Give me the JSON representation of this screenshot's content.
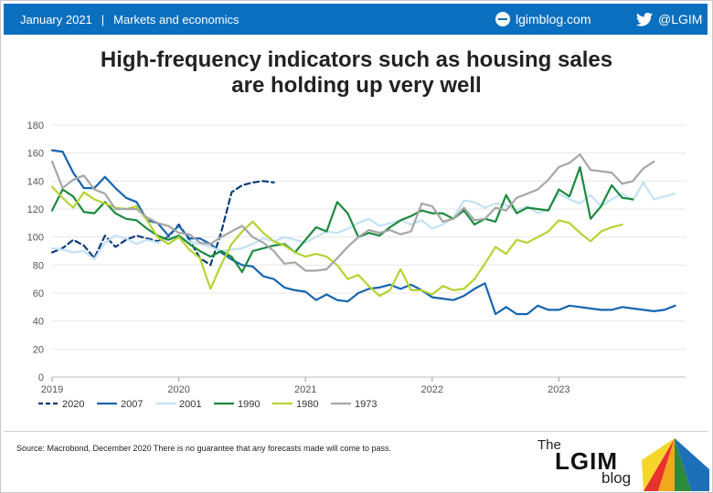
{
  "header": {
    "date": "January 2021",
    "separator": "|",
    "category": "Markets and economics",
    "site": "lgimblog.com",
    "twitter": "@LGIM"
  },
  "title_line1": "High-frequency indicators such as housing sales",
  "title_line2": "are holding up very well",
  "footer": {
    "source": "Source: Macrobond, December 2020 There is no guarantee that any forecasts made will come to pass.",
    "logo_the": "The",
    "logo_lgim": "LGIM",
    "logo_blog": "blog"
  },
  "chart_data": {
    "type": "line",
    "title": "High-frequency indicators such as housing sales are holding up very well",
    "xlabel": "",
    "ylabel": "",
    "ylim": [
      0,
      180
    ],
    "yticks": [
      0,
      20,
      40,
      60,
      80,
      100,
      120,
      140,
      160,
      180
    ],
    "xticks": [
      {
        "label": "2019",
        "x": 0
      },
      {
        "label": "2020",
        "x": 12
      },
      {
        "label": "2021",
        "x": 24
      },
      {
        "label": "2022",
        "x": 36
      },
      {
        "label": "2023",
        "x": 48
      }
    ],
    "x_unit": "months from January of year 1 of each cycle",
    "grid": "horizontal",
    "legend_position": "bottom-left",
    "series": [
      {
        "name": "2020",
        "color": "#0b3d7a",
        "dashed": true,
        "values": [
          89,
          92,
          98,
          94,
          85,
          101,
          93,
          98,
          101,
          99,
          97,
          100,
          109,
          98,
          85,
          80,
          103,
          132,
          137,
          139,
          140,
          139
        ]
      },
      {
        "name": "2007",
        "color": "#1565b0",
        "dashed": false,
        "values": [
          162,
          161,
          146,
          135,
          135,
          143,
          135,
          128,
          125,
          112,
          110,
          101,
          108,
          99,
          99,
          95,
          89,
          84,
          80,
          79,
          72,
          70,
          64,
          62,
          61,
          55,
          59,
          55,
          54,
          60,
          63,
          64,
          66,
          63,
          66,
          62,
          57,
          56,
          55,
          58,
          63,
          67,
          45,
          50,
          45,
          45,
          51,
          48,
          48,
          51,
          50,
          49,
          48,
          48,
          50,
          49,
          48,
          47,
          48,
          51
        ]
      },
      {
        "name": "2001",
        "color": "#c4e2f5",
        "dashed": false,
        "values": [
          92,
          91,
          89,
          90,
          84,
          96,
          101,
          99,
          95,
          98,
          96,
          99,
          101,
          97,
          95,
          93,
          90,
          91,
          92,
          95,
          99,
          97,
          100,
          98,
          96,
          100,
          104,
          103,
          106,
          110,
          113,
          108,
          110,
          112,
          109,
          112,
          106,
          109,
          114,
          126,
          125,
          121,
          124,
          123,
          119,
          122,
          117,
          120,
          131,
          127,
          124,
          130,
          122,
          127,
          131,
          126,
          139,
          127,
          129,
          131
        ]
      },
      {
        "name": "1990",
        "color": "#1c8a3e",
        "dashed": false,
        "values": [
          119,
          134,
          129,
          118,
          117,
          125,
          117,
          113,
          112,
          106,
          101,
          98,
          101,
          95,
          90,
          86,
          90,
          86,
          75,
          90,
          92,
          94,
          95,
          89,
          98,
          107,
          104,
          125,
          117,
          100,
          103,
          101,
          107,
          112,
          115,
          119,
          117,
          117,
          113,
          119,
          109,
          113,
          111,
          130,
          117,
          121,
          120,
          119,
          134,
          129,
          150,
          113,
          122,
          137,
          128,
          127
        ]
      },
      {
        "name": "1980",
        "color": "#b5d334",
        "dashed": false,
        "values": [
          136,
          128,
          121,
          132,
          127,
          124,
          121,
          120,
          122,
          112,
          100,
          95,
          100,
          91,
          85,
          63,
          80,
          95,
          104,
          111,
          103,
          97,
          94,
          89,
          86,
          88,
          86,
          80,
          70,
          73,
          65,
          58,
          62,
          77,
          62,
          62,
          59,
          65,
          62,
          63,
          70,
          81,
          93,
          88,
          98,
          96,
          100,
          104,
          112,
          110,
          103,
          97,
          104,
          107,
          109
        ]
      },
      {
        "name": "1973",
        "color": "#a6a6a6",
        "dashed": false,
        "values": [
          154,
          135,
          141,
          144,
          134,
          131,
          120,
          120,
          120,
          114,
          110,
          108,
          103,
          102,
          96,
          95,
          100,
          104,
          108,
          100,
          96,
          90,
          81,
          82,
          76,
          76,
          77,
          85,
          93,
          100,
          105,
          103,
          105,
          102,
          104,
          124,
          122,
          111,
          113,
          121,
          112,
          113,
          121,
          119,
          128,
          131,
          134,
          141,
          150,
          153,
          159,
          148,
          147,
          146,
          138,
          140,
          149,
          154
        ]
      }
    ]
  }
}
